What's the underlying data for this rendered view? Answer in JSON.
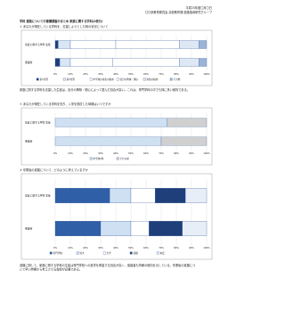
{
  "header": {
    "date": "平成25年度〇月〇日",
    "org": "〇〇県教育委員会 高校教育課 進路指導研究グループ"
  },
  "title": "学科 進路についての意識調査のまとめ 家庭に関する学科(2校分)",
  "sections": [
    {
      "heading": "① あなたが現在している学科を、志望しようとした時の状況について",
      "chart": {
        "type": "bar",
        "stacked": true,
        "categories": [
          "家庭に関する学科 生徒",
          "保護者"
        ],
        "series": [
          {
            "name": "第1志望",
            "color": "#1f3f7a",
            "values": [
              2,
              3
            ]
          },
          {
            "name": "第2志望",
            "color": "#d9e6f5",
            "values": [
              8,
              7
            ]
          },
          {
            "name": "中学校の先生の勧め",
            "color": "#ffffff",
            "values": [
              30,
              28
            ]
          },
          {
            "name": "自分の興味・関心",
            "color": "#ffffff",
            "values": [
              42,
              44
            ]
          },
          {
            "name": "家族の勧め",
            "color": "#dde8f4",
            "values": [
              13,
              13
            ]
          },
          {
            "name": "その他",
            "color": "#9bb3d6",
            "values": [
              5,
              5
            ]
          }
        ],
        "xlim": [
          0,
          100
        ],
        "xticks": [
          {
            "value": 0,
            "label": "0%"
          },
          {
            "value": 10,
            "label": "10%"
          },
          {
            "value": 20,
            "label": "20%"
          },
          {
            "value": 30,
            "label": "30%"
          },
          {
            "value": 40,
            "label": "40%"
          },
          {
            "value": 50,
            "label": "50%"
          },
          {
            "value": 60,
            "label": "60%"
          },
          {
            "value": 70,
            "label": "70%"
          },
          {
            "value": 80,
            "label": "80%"
          },
          {
            "value": 90,
            "label": "90%"
          },
          {
            "value": 100,
            "label": "100%"
          }
        ]
      },
      "note": "家庭に関する学科を志望した生徒は、自分の興味・関心によって選んだ割合が高い。これは、専門学科の中でも特に多い傾向である。"
    },
    {
      "heading": "② あなたが現在している学科を知り、入学を検討した時期はいつですか",
      "chart": {
        "type": "bar",
        "stacked": true,
        "categories": [
          "家庭に関する学科 生徒",
          "保護者"
        ],
        "series": [
          {
            "name": "中学校3年",
            "color": "#cfe0f3",
            "values": [
              74,
              70
            ]
          },
          {
            "name": "それ以前",
            "color": "#d0d0d0",
            "values": [
              26,
              30
            ]
          }
        ],
        "xlim": [
          0,
          100
        ],
        "xticks": [
          {
            "value": 0,
            "label": "0%"
          },
          {
            "value": 10,
            "label": "10%"
          },
          {
            "value": 20,
            "label": "20%"
          },
          {
            "value": 30,
            "label": "30%"
          },
          {
            "value": 40,
            "label": "40%"
          },
          {
            "value": 50,
            "label": "50%"
          },
          {
            "value": 60,
            "label": "60%"
          },
          {
            "value": 70,
            "label": "70%"
          },
          {
            "value": 80,
            "label": "80%"
          },
          {
            "value": 90,
            "label": "90%"
          },
          {
            "value": 100,
            "label": "100%"
          }
        ]
      }
    },
    {
      "heading": "③ 卒業後の進路について、どのように考えていますか",
      "chart": {
        "type": "bar",
        "stacked": true,
        "categories": [
          "家庭に関する学科 生徒",
          "保護者"
        ],
        "series": [
          {
            "name": "専門学校",
            "color": "#2f5fa7",
            "values": [
              36,
              30
            ]
          },
          {
            "name": "短大",
            "color": "#cfe0f3",
            "values": [
              14,
              20
            ]
          },
          {
            "name": "大学",
            "color": "#ffffff",
            "values": [
              16,
              12
            ]
          },
          {
            "name": "就職",
            "color": "#1f3f7a",
            "values": [
              20,
              22
            ]
          },
          {
            "name": "未定",
            "color": "#e8eef7",
            "values": [
              14,
              16
            ]
          }
        ],
        "xlim": [
          0,
          100
        ],
        "xticks": [
          {
            "value": 0,
            "label": "0%"
          },
          {
            "value": 10,
            "label": "10%"
          },
          {
            "value": 20,
            "label": "20%"
          },
          {
            "value": 30,
            "label": "30%"
          },
          {
            "value": 40,
            "label": "40%"
          },
          {
            "value": 50,
            "label": "50%"
          },
          {
            "value": 60,
            "label": "60%"
          },
          {
            "value": 70,
            "label": "70%"
          },
          {
            "value": 80,
            "label": "80%"
          },
          {
            "value": 90,
            "label": "90%"
          },
          {
            "value": 100,
            "label": "100%"
          }
        ]
      }
    }
  ],
  "footer": "進路に関して、家庭に関する学科の生徒は専門学校への進学を希望する割合が高く、保護者も同様の傾向を示している。卒業後の進路について早い時期から考えさせる指導が必要である。"
}
